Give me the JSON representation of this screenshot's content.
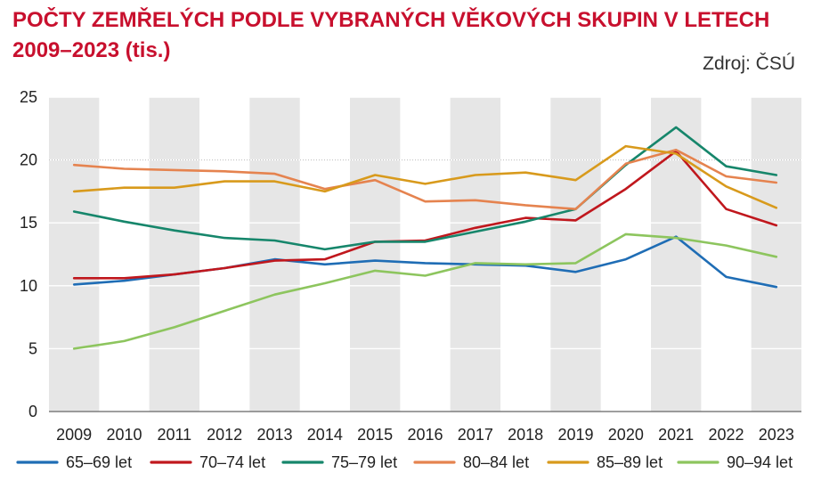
{
  "title": "POČTY ZEMŘELÝCH PODLE VYBRANÝCH VĚKOVÝCH SKUPIN V LETECH 2009–2023 (tis.)",
  "source": "Zdroj: ČSÚ",
  "chart_data": {
    "type": "line",
    "title": "POČTY ZEMŘELÝCH PODLE VYBRANÝCH VĚKOVÝCH SKUPIN V LETECH 2009–2023 (tis.)",
    "xlabel": "",
    "ylabel": "",
    "ylim": [
      0,
      25
    ],
    "yticks": [
      0,
      5,
      10,
      15,
      20,
      25
    ],
    "grid": true,
    "legend_position": "bottom",
    "x": [
      "2009",
      "2010",
      "2011",
      "2012",
      "2013",
      "2014",
      "2015",
      "2016",
      "2017",
      "2018",
      "2019",
      "2020",
      "2021",
      "2022",
      "2023"
    ],
    "series": [
      {
        "name": "65–69 let",
        "color": "#1f6db5",
        "values": [
          10.1,
          10.4,
          10.9,
          11.4,
          12.1,
          11.7,
          12.0,
          11.8,
          11.7,
          11.6,
          11.1,
          12.1,
          13.9,
          10.7,
          9.9
        ]
      },
      {
        "name": "70–74 let",
        "color": "#c0171d",
        "values": [
          10.6,
          10.6,
          10.9,
          11.4,
          12.0,
          12.1,
          13.5,
          13.6,
          14.6,
          15.4,
          15.2,
          17.7,
          20.7,
          16.1,
          14.8
        ]
      },
      {
        "name": "75–79 let",
        "color": "#16866b",
        "values": [
          15.9,
          15.1,
          14.4,
          13.8,
          13.6,
          12.9,
          13.5,
          13.5,
          14.3,
          15.1,
          16.1,
          19.6,
          22.6,
          19.5,
          18.8
        ]
      },
      {
        "name": "80–84 let",
        "color": "#e5834f",
        "values": [
          19.6,
          19.3,
          19.2,
          19.1,
          18.9,
          17.7,
          18.4,
          16.7,
          16.8,
          16.4,
          16.1,
          19.7,
          20.8,
          18.7,
          18.2
        ]
      },
      {
        "name": "85–89 let",
        "color": "#d89a1c",
        "values": [
          17.5,
          17.8,
          17.8,
          18.3,
          18.3,
          17.5,
          18.8,
          18.1,
          18.8,
          19.0,
          18.4,
          21.1,
          20.5,
          17.9,
          16.2
        ]
      },
      {
        "name": "90–94 let",
        "color": "#8dc55e",
        "values": [
          5.0,
          5.6,
          6.7,
          8.0,
          9.3,
          10.2,
          11.2,
          10.8,
          11.8,
          11.7,
          11.8,
          14.1,
          13.8,
          13.2,
          12.3
        ]
      }
    ]
  }
}
